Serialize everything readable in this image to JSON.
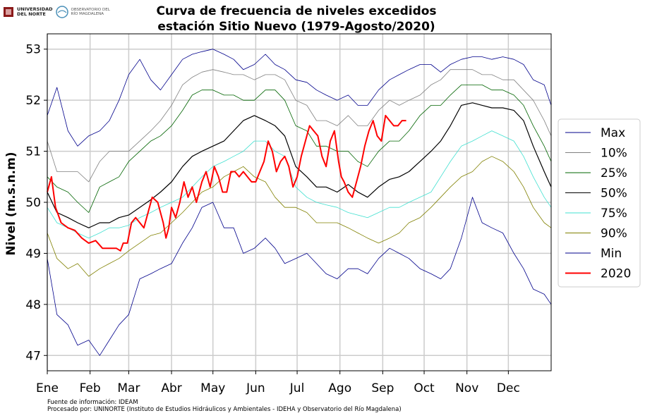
{
  "logos": {
    "uninorte": {
      "line1": "UNIVERSIDAD",
      "line2": "DEL NORTE"
    },
    "observatorio": {
      "line1": "OBSERVATORIO DEL",
      "line2": "RÍO MAGDALENA"
    }
  },
  "footer": {
    "line1": "Fuente de información: IDEAM",
    "line2": "Procesado por: UNINORTE (Instituto de Estudios Hidráulicos y Ambientales - IDEHA y Observatorio del Río Magdalena)"
  },
  "chart_data": {
    "type": "line",
    "title": "Curva de frecuencia de niveles excedidos",
    "subtitle": "estación Sitio Nuevo (1979-Agosto/2020)",
    "xlabel": "",
    "ylabel": "Nivel (m.s.n.m)",
    "ylim": [
      46.7,
      53.3
    ],
    "yticks": [
      47,
      48,
      49,
      50,
      51,
      52,
      53
    ],
    "xlim": [
      0,
      365
    ],
    "x_tick_positions": [
      0,
      31,
      59,
      90,
      120,
      151,
      181,
      212,
      243,
      273,
      304,
      334
    ],
    "x_tick_labels": [
      "Ene",
      "Feb",
      "Mar",
      "Abr",
      "May",
      "Jun",
      "Jul",
      "Ago",
      "Sep",
      "Oct",
      "Nov",
      "Dec"
    ],
    "grid": true,
    "legend_position": "right",
    "x": [
      0,
      7,
      15,
      22,
      30,
      38,
      45,
      52,
      59,
      67,
      75,
      82,
      90,
      98,
      105,
      112,
      120,
      128,
      135,
      142,
      150,
      158,
      165,
      172,
      180,
      188,
      195,
      202,
      210,
      218,
      225,
      232,
      240,
      248,
      255,
      262,
      270,
      278,
      285,
      292,
      300,
      308,
      315,
      322,
      330,
      338,
      345,
      352,
      360,
      365
    ],
    "series": [
      {
        "name": "Max",
        "color": "#00008b",
        "width": 0.8,
        "values": [
          51.7,
          52.25,
          51.4,
          51.1,
          51.3,
          51.4,
          51.6,
          52.0,
          52.5,
          52.8,
          52.4,
          52.2,
          52.5,
          52.8,
          52.9,
          52.95,
          53.0,
          52.9,
          52.8,
          52.6,
          52.7,
          52.9,
          52.7,
          52.6,
          52.4,
          52.35,
          52.2,
          52.1,
          52.0,
          52.1,
          51.9,
          51.9,
          52.2,
          52.4,
          52.5,
          52.6,
          52.7,
          52.7,
          52.55,
          52.7,
          52.8,
          52.85,
          52.85,
          52.8,
          52.85,
          52.8,
          52.7,
          52.4,
          52.3,
          51.9
        ]
      },
      {
        "name": "10%",
        "color": "#808080",
        "width": 0.8,
        "values": [
          51.2,
          50.6,
          50.6,
          50.6,
          50.4,
          50.8,
          51.0,
          51.0,
          51.0,
          51.2,
          51.4,
          51.6,
          51.9,
          52.3,
          52.45,
          52.55,
          52.6,
          52.55,
          52.5,
          52.5,
          52.4,
          52.5,
          52.5,
          52.4,
          52.0,
          51.9,
          51.6,
          51.6,
          51.5,
          51.7,
          51.5,
          51.5,
          51.8,
          52.0,
          51.9,
          52.0,
          52.1,
          52.3,
          52.4,
          52.6,
          52.6,
          52.6,
          52.5,
          52.5,
          52.4,
          52.4,
          52.2,
          52.0,
          51.6,
          51.3
        ]
      },
      {
        "name": "25%",
        "color": "#006400",
        "width": 0.8,
        "values": [
          50.5,
          50.3,
          50.2,
          50.0,
          49.8,
          50.3,
          50.4,
          50.5,
          50.8,
          51.0,
          51.2,
          51.3,
          51.5,
          51.8,
          52.1,
          52.2,
          52.2,
          52.1,
          52.1,
          52.0,
          52.0,
          52.2,
          52.2,
          52.0,
          51.5,
          51.4,
          51.1,
          51.1,
          51.0,
          51.0,
          50.8,
          50.7,
          51.0,
          51.2,
          51.2,
          51.4,
          51.7,
          51.9,
          51.9,
          52.1,
          52.3,
          52.3,
          52.3,
          52.2,
          52.2,
          52.1,
          51.9,
          51.5,
          51.1,
          50.8
        ]
      },
      {
        "name": "50%",
        "color": "#000000",
        "width": 1.2,
        "values": [
          50.2,
          49.8,
          49.7,
          49.6,
          49.5,
          49.6,
          49.6,
          49.7,
          49.75,
          49.9,
          50.05,
          50.2,
          50.4,
          50.7,
          50.9,
          51.0,
          51.1,
          51.2,
          51.4,
          51.6,
          51.7,
          51.6,
          51.5,
          51.3,
          50.7,
          50.5,
          50.3,
          50.3,
          50.2,
          50.35,
          50.2,
          50.1,
          50.3,
          50.45,
          50.5,
          50.6,
          50.8,
          51.0,
          51.2,
          51.5,
          51.9,
          51.95,
          51.9,
          51.85,
          51.85,
          51.8,
          51.6,
          51.1,
          50.6,
          50.3
        ]
      },
      {
        "name": "75%",
        "color": "#40e0d0",
        "width": 0.8,
        "values": [
          49.9,
          49.6,
          49.5,
          49.4,
          49.3,
          49.4,
          49.5,
          49.5,
          49.55,
          49.7,
          49.8,
          49.9,
          50.0,
          50.1,
          50.3,
          50.5,
          50.7,
          50.8,
          50.9,
          51.0,
          51.2,
          51.2,
          51.0,
          50.9,
          50.3,
          50.1,
          50.0,
          49.95,
          49.9,
          49.8,
          49.75,
          49.7,
          49.8,
          49.9,
          49.9,
          50.0,
          50.1,
          50.2,
          50.5,
          50.8,
          51.1,
          51.2,
          51.3,
          51.4,
          51.3,
          51.2,
          50.9,
          50.5,
          50.1,
          49.9
        ]
      },
      {
        "name": "90%",
        "color": "#808000",
        "width": 0.8,
        "values": [
          49.4,
          48.9,
          48.7,
          48.8,
          48.55,
          48.7,
          48.8,
          48.9,
          49.05,
          49.2,
          49.35,
          49.4,
          49.6,
          49.8,
          50.0,
          50.2,
          50.3,
          50.5,
          50.6,
          50.7,
          50.5,
          50.4,
          50.1,
          49.9,
          49.9,
          49.8,
          49.6,
          49.6,
          49.6,
          49.5,
          49.4,
          49.3,
          49.2,
          49.3,
          49.4,
          49.6,
          49.7,
          49.9,
          50.1,
          50.3,
          50.5,
          50.6,
          50.8,
          50.9,
          50.8,
          50.6,
          50.3,
          49.9,
          49.6,
          49.5
        ]
      },
      {
        "name": "Min",
        "color": "#00008b",
        "width": 0.8,
        "values": [
          48.9,
          47.8,
          47.6,
          47.2,
          47.3,
          47.0,
          47.3,
          47.6,
          47.8,
          48.5,
          48.6,
          48.7,
          48.8,
          49.2,
          49.5,
          49.9,
          50.0,
          49.5,
          49.5,
          49.0,
          49.1,
          49.3,
          49.1,
          48.8,
          48.9,
          49.0,
          48.8,
          48.6,
          48.5,
          48.7,
          48.7,
          48.6,
          48.9,
          49.1,
          49.0,
          48.9,
          48.7,
          48.6,
          48.5,
          48.7,
          49.3,
          50.1,
          49.6,
          49.5,
          49.4,
          49.0,
          48.7,
          48.3,
          48.2,
          48.0
        ]
      }
    ],
    "series_2020": {
      "name": "2020",
      "color": "#ff0000",
      "width": 2,
      "x": [
        0,
        3,
        6,
        10,
        15,
        20,
        25,
        30,
        35,
        40,
        45,
        50,
        53,
        55,
        58,
        61,
        64,
        67,
        70,
        73,
        76,
        80,
        84,
        86,
        88,
        90,
        93,
        96,
        99,
        102,
        105,
        108,
        112,
        115,
        118,
        121,
        124,
        127,
        130,
        133,
        136,
        139,
        142,
        145,
        148,
        151,
        154,
        157,
        160,
        163,
        166,
        169,
        172,
        175,
        178,
        181,
        184,
        187,
        190,
        193,
        196,
        199,
        202,
        205,
        208,
        211,
        213,
        215,
        218,
        221,
        224,
        227,
        230,
        233,
        236,
        239,
        242,
        245,
        248,
        251,
        254,
        257,
        260
      ],
      "values": [
        50.2,
        50.5,
        49.9,
        49.6,
        49.5,
        49.45,
        49.3,
        49.2,
        49.25,
        49.1,
        49.1,
        49.1,
        49.05,
        49.2,
        49.2,
        49.6,
        49.7,
        49.6,
        49.5,
        49.8,
        50.1,
        50.0,
        49.6,
        49.3,
        49.5,
        49.9,
        49.7,
        50.0,
        50.4,
        50.1,
        50.3,
        50.0,
        50.4,
        50.6,
        50.3,
        50.7,
        50.5,
        50.2,
        50.2,
        50.6,
        50.6,
        50.5,
        50.6,
        50.5,
        50.4,
        50.4,
        50.6,
        50.8,
        51.2,
        51.0,
        50.6,
        50.8,
        50.9,
        50.7,
        50.3,
        50.5,
        50.9,
        51.2,
        51.5,
        51.4,
        51.3,
        50.9,
        50.7,
        51.2,
        51.4,
        50.8,
        50.5,
        50.4,
        50.2,
        50.1,
        50.4,
        50.7,
        51.1,
        51.4,
        51.6,
        51.3,
        51.2,
        51.7,
        51.6,
        51.5,
        51.5,
        51.6,
        51.6
      ]
    }
  }
}
